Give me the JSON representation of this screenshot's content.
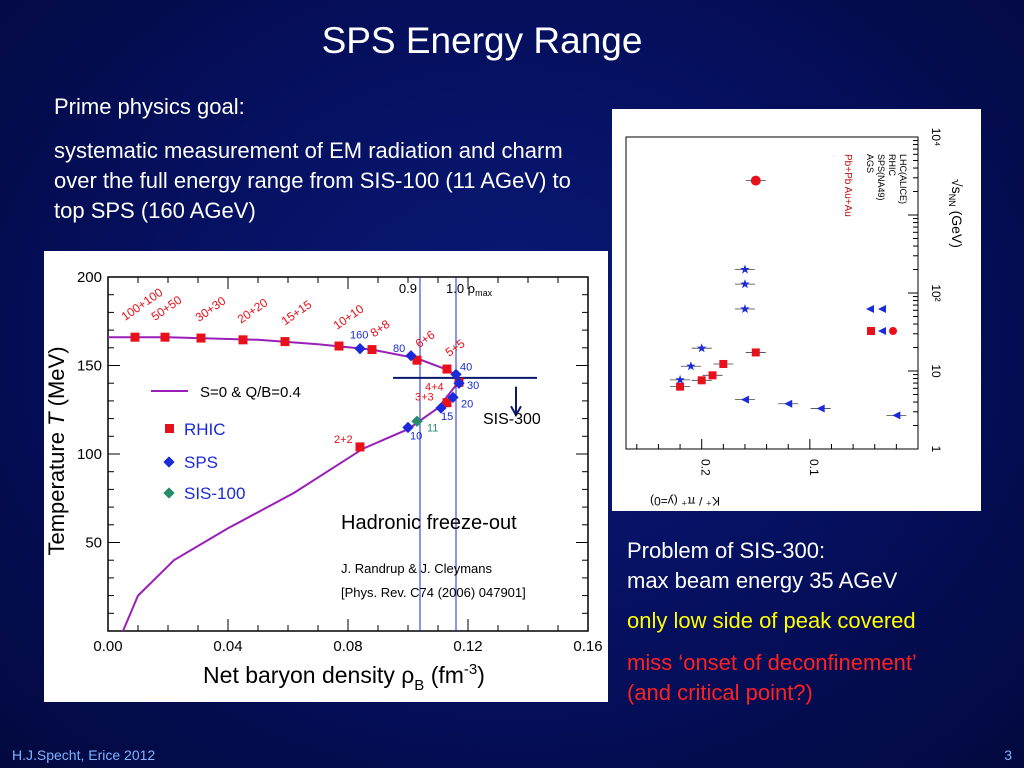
{
  "slide": {
    "title": "SPS Energy Range",
    "goal_heading": "Prime physics goal:",
    "goal_text": "systematic measurement of EM radiation and charm over the full energy range from SIS-100 (11 AGeV) to top SPS (160 AGeV)",
    "problem_line1": "Problem of SIS-300:",
    "problem_line2": "max beam energy 35 AGeV",
    "problem_line3": "only low side of peak covered",
    "problem_line4": "miss ‘onset of deconfinement’",
    "problem_line5": "(and critical point?)",
    "footer": "H.J.Specht, Erice 2012",
    "page_number": "3"
  },
  "colors": {
    "background": "#050f5c",
    "highlight_yellow": "#ffff00",
    "highlight_red": "#ff2020",
    "rhic": "#e8101a",
    "sps": "#1a2ad8",
    "sis100": "#2a8a6e",
    "curve": "#9a1fb8"
  },
  "chart_data": [
    {
      "type": "scatter",
      "xlabel": "Net baryon density ρ",
      "xlabel_sub": "B",
      "xlabel_unit": " (fm",
      "xlabel_sup": "-3",
      "xlabel_end": ")",
      "ylabel": "Temperature ",
      "ylabel_italic": "T",
      "ylabel_unit": " (MeV)",
      "xlim": [
        0.0,
        0.16
      ],
      "ylim": [
        0,
        200
      ],
      "xticks": [
        "0.00",
        "0.04",
        "0.08",
        "0.12",
        "0.16"
      ],
      "yticks": [
        "50",
        "100",
        "150",
        "200"
      ],
      "curve_label": "S=0 & Q/B=0.4",
      "curve": [
        {
          "x": 0.005,
          "y": 0
        },
        {
          "x": 0.01,
          "y": 20
        },
        {
          "x": 0.022,
          "y": 40
        },
        {
          "x": 0.04,
          "y": 58
        },
        {
          "x": 0.062,
          "y": 78
        },
        {
          "x": 0.085,
          "y": 103
        },
        {
          "x": 0.1,
          "y": 114
        },
        {
          "x": 0.11,
          "y": 126
        },
        {
          "x": 0.117,
          "y": 141
        },
        {
          "x": 0.114,
          "y": 147
        },
        {
          "x": 0.103,
          "y": 154
        },
        {
          "x": 0.088,
          "y": 159
        },
        {
          "x": 0.07,
          "y": 162
        },
        {
          "x": 0.05,
          "y": 164.5
        },
        {
          "x": 0.02,
          "y": 166
        },
        {
          "x": 0.0,
          "y": 166
        }
      ],
      "series": [
        {
          "name": "RHIC",
          "color": "#e8101a",
          "points": [
            {
              "x": 0.009,
              "y": 166,
              "label": "100+100"
            },
            {
              "x": 0.019,
              "y": 166,
              "label": "50+50"
            },
            {
              "x": 0.031,
              "y": 165.5,
              "label": "30+30"
            },
            {
              "x": 0.045,
              "y": 164.5,
              "label": "20+20"
            },
            {
              "x": 0.059,
              "y": 163.5,
              "label": "15+15"
            },
            {
              "x": 0.077,
              "y": 161,
              "label": "10+10"
            },
            {
              "x": 0.088,
              "y": 159,
              "label": "8+8"
            },
            {
              "x": 0.103,
              "y": 153,
              "label": "6+6"
            },
            {
              "x": 0.113,
              "y": 148,
              "label": "5+5"
            },
            {
              "x": 0.117,
              "y": 140.5,
              "label": "4+4"
            },
            {
              "x": 0.113,
              "y": 129,
              "label": "3+3"
            },
            {
              "x": 0.084,
              "y": 104,
              "label": "2+2"
            }
          ]
        },
        {
          "name": "SPS",
          "color": "#1a2ad8",
          "points": [
            {
              "x": 0.084,
              "y": 159.5,
              "label": "160"
            },
            {
              "x": 0.101,
              "y": 155.5,
              "label": "80"
            },
            {
              "x": 0.116,
              "y": 145,
              "label": "40"
            },
            {
              "x": 0.117,
              "y": 140,
              "label": "30"
            },
            {
              "x": 0.115,
              "y": 132,
              "label": "20"
            },
            {
              "x": 0.111,
              "y": 126,
              "label": "15"
            },
            {
              "x": 0.1,
              "y": 115,
              "label": "10"
            }
          ]
        },
        {
          "name": "SIS-100",
          "color": "#2a8a6e",
          "points": [
            {
              "x": 0.103,
              "y": 118.5,
              "label": "11"
            }
          ]
        }
      ],
      "vlines": [
        {
          "x": 0.104,
          "label": "0.9"
        },
        {
          "x": 0.116,
          "label": "1.0 ρ",
          "label_sub": "max"
        }
      ],
      "sis300_label": "SIS-300",
      "sis300_line": {
        "x1": 0.095,
        "x2": 0.143,
        "y": 143
      },
      "annotation_main": "Hadronic freeze-out",
      "annotation_ref1": "J. Randrup & J. Cleymans",
      "annotation_ref2": "[Phys. Rev. C74 (2006) 047901]",
      "legend_placement": "middle-left"
    },
    {
      "type": "scatter",
      "xlabel": "√s",
      "xlabel_sub": "NN",
      "xlabel_unit": " (GeV)",
      "ylabel": "K⁺ / π⁺ (y=0)",
      "x_scale": "log",
      "xlim": [
        1,
        10000
      ],
      "ylim": [
        0,
        0.27
      ],
      "xticks": [
        "1",
        "10",
        "10²",
        "10⁴"
      ],
      "yticks": [
        "0.1",
        "0.2"
      ],
      "legend_title": "Pb+Pb  Au+Au",
      "series": [
        {
          "name": "AGS",
          "color": "#1a2ad8",
          "marker": "triangle",
          "points": [
            {
              "x": 2.7,
              "y": 0.02
            },
            {
              "x": 3.3,
              "y": 0.09
            },
            {
              "x": 3.8,
              "y": 0.12
            },
            {
              "x": 4.3,
              "y": 0.16
            }
          ]
        },
        {
          "name": "SPS(NA49)",
          "color": "#e8101a",
          "marker": "square",
          "points": [
            {
              "x": 6.3,
              "y": 0.22
            },
            {
              "x": 7.6,
              "y": 0.2
            },
            {
              "x": 8.8,
              "y": 0.19
            },
            {
              "x": 12.3,
              "y": 0.18
            },
            {
              "x": 17.3,
              "y": 0.15
            }
          ]
        },
        {
          "name": "RHIC",
          "color": "#1a2ad8",
          "marker": "star",
          "points": [
            {
              "x": 7.7,
              "y": 0.22
            },
            {
              "x": 11.5,
              "y": 0.21
            },
            {
              "x": 19.6,
              "y": 0.2
            },
            {
              "x": 62.4,
              "y": 0.16
            },
            {
              "x": 130,
              "y": 0.16
            },
            {
              "x": 200,
              "y": 0.16
            }
          ]
        },
        {
          "name": "LHC(ALICE)",
          "color": "#e8101a",
          "marker": "circle",
          "points": [
            {
              "x": 2760,
              "y": 0.15
            }
          ]
        }
      ]
    }
  ]
}
